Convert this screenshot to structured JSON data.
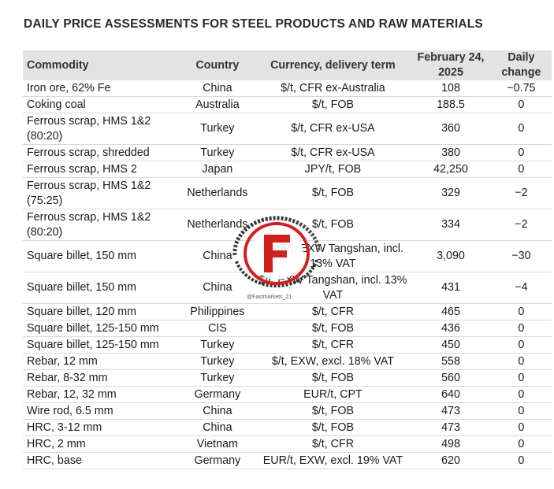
{
  "title": "DAILY PRICE ASSESSMENTS FOR STEEL PRODUCTS AND RAW MATERIALS",
  "headers": {
    "commodity": "Commodity",
    "country": "Country",
    "term": "Currency, delivery term",
    "date": "February 24, 2025",
    "change": "Daily change"
  },
  "rows": [
    {
      "commodity": "Iron ore, 62% Fe",
      "country": "China",
      "term": "$/t, CFR ex-Australia",
      "price": "108",
      "change": "−0.75"
    },
    {
      "commodity": "Coking coal",
      "country": "Australia",
      "term": "$/t, FOB",
      "price": "188.5",
      "change": "0"
    },
    {
      "commodity": "Ferrous scrap, HMS 1&2 (80:20)",
      "country": "Turkey",
      "term": "$/t, CFR ex-USA",
      "price": "360",
      "change": "0"
    },
    {
      "commodity": "Ferrous scrap, shredded",
      "country": "Turkey",
      "term": "$/t, CFR ex-USA",
      "price": "380",
      "change": "0"
    },
    {
      "commodity": "Ferrous scrap, HMS 2",
      "country": "Japan",
      "term": "JPY/t, FOB",
      "price": "42,250",
      "change": "0"
    },
    {
      "commodity": "Ferrous scrap, HMS 1&2 (75:25)",
      "country": "Netherlands",
      "term": "$/t, FOB",
      "price": "329",
      "change": "−2"
    },
    {
      "commodity": "Ferrous scrap, HMS 1&2 (80:20)",
      "country": "Netherlands",
      "term": "$/t, FOB",
      "price": "334",
      "change": "−2"
    },
    {
      "commodity": "Square billet, 150 mm",
      "country": "China",
      "term": "RMB/t, EXW Tangshan, incl. 13% VAT",
      "price": "3,090",
      "change": "−30"
    },
    {
      "commodity": "Square billet, 150 mm",
      "country": "China",
      "term": "$/t, EXW Tangshan, incl. 13% VAT",
      "price": "431",
      "change": "−4"
    },
    {
      "commodity": "Square billet, 120 mm",
      "country": "Philippines",
      "term": "$/t, CFR",
      "price": "465",
      "change": "0"
    },
    {
      "commodity": "Square billet, 125-150 mm",
      "country": "CIS",
      "term": "$/t, FOB",
      "price": "436",
      "change": "0"
    },
    {
      "commodity": "Square billet, 125-150 mm",
      "country": "Turkey",
      "term": "$/t, CFR",
      "price": "450",
      "change": "0"
    },
    {
      "commodity": "Rebar, 12 mm",
      "country": "Turkey",
      "term": "$/t, EXW, excl. 18% VAT",
      "price": "558",
      "change": "0"
    },
    {
      "commodity": "Rebar, 8-32 mm",
      "country": "Turkey",
      "term": "$/t, FOB",
      "price": "560",
      "change": "0"
    },
    {
      "commodity": "Rebar, 12, 32 mm",
      "country": "Germany",
      "term": "EUR/t, CPT",
      "price": "640",
      "change": "0"
    },
    {
      "commodity": "Wire rod, 6.5 mm",
      "country": "China",
      "term": "$/t, FOB",
      "price": "473",
      "change": "0"
    },
    {
      "commodity": "HRC, 3-12 mm",
      "country": "China",
      "term": "$/t, FOB",
      "price": "473",
      "change": "0"
    },
    {
      "commodity": "HRC, 2 mm",
      "country": "Vietnam",
      "term": "$/t, CFR",
      "price": "498",
      "change": "0"
    },
    {
      "commodity": "HRC, base",
      "country": "Germany",
      "term": "EUR/t, EXW, excl. 19% VAT",
      "price": "620",
      "change": "0"
    }
  ],
  "watermark": {
    "label": "F",
    "handle": "@Fastmarkets_21",
    "color": "#d0201f"
  }
}
